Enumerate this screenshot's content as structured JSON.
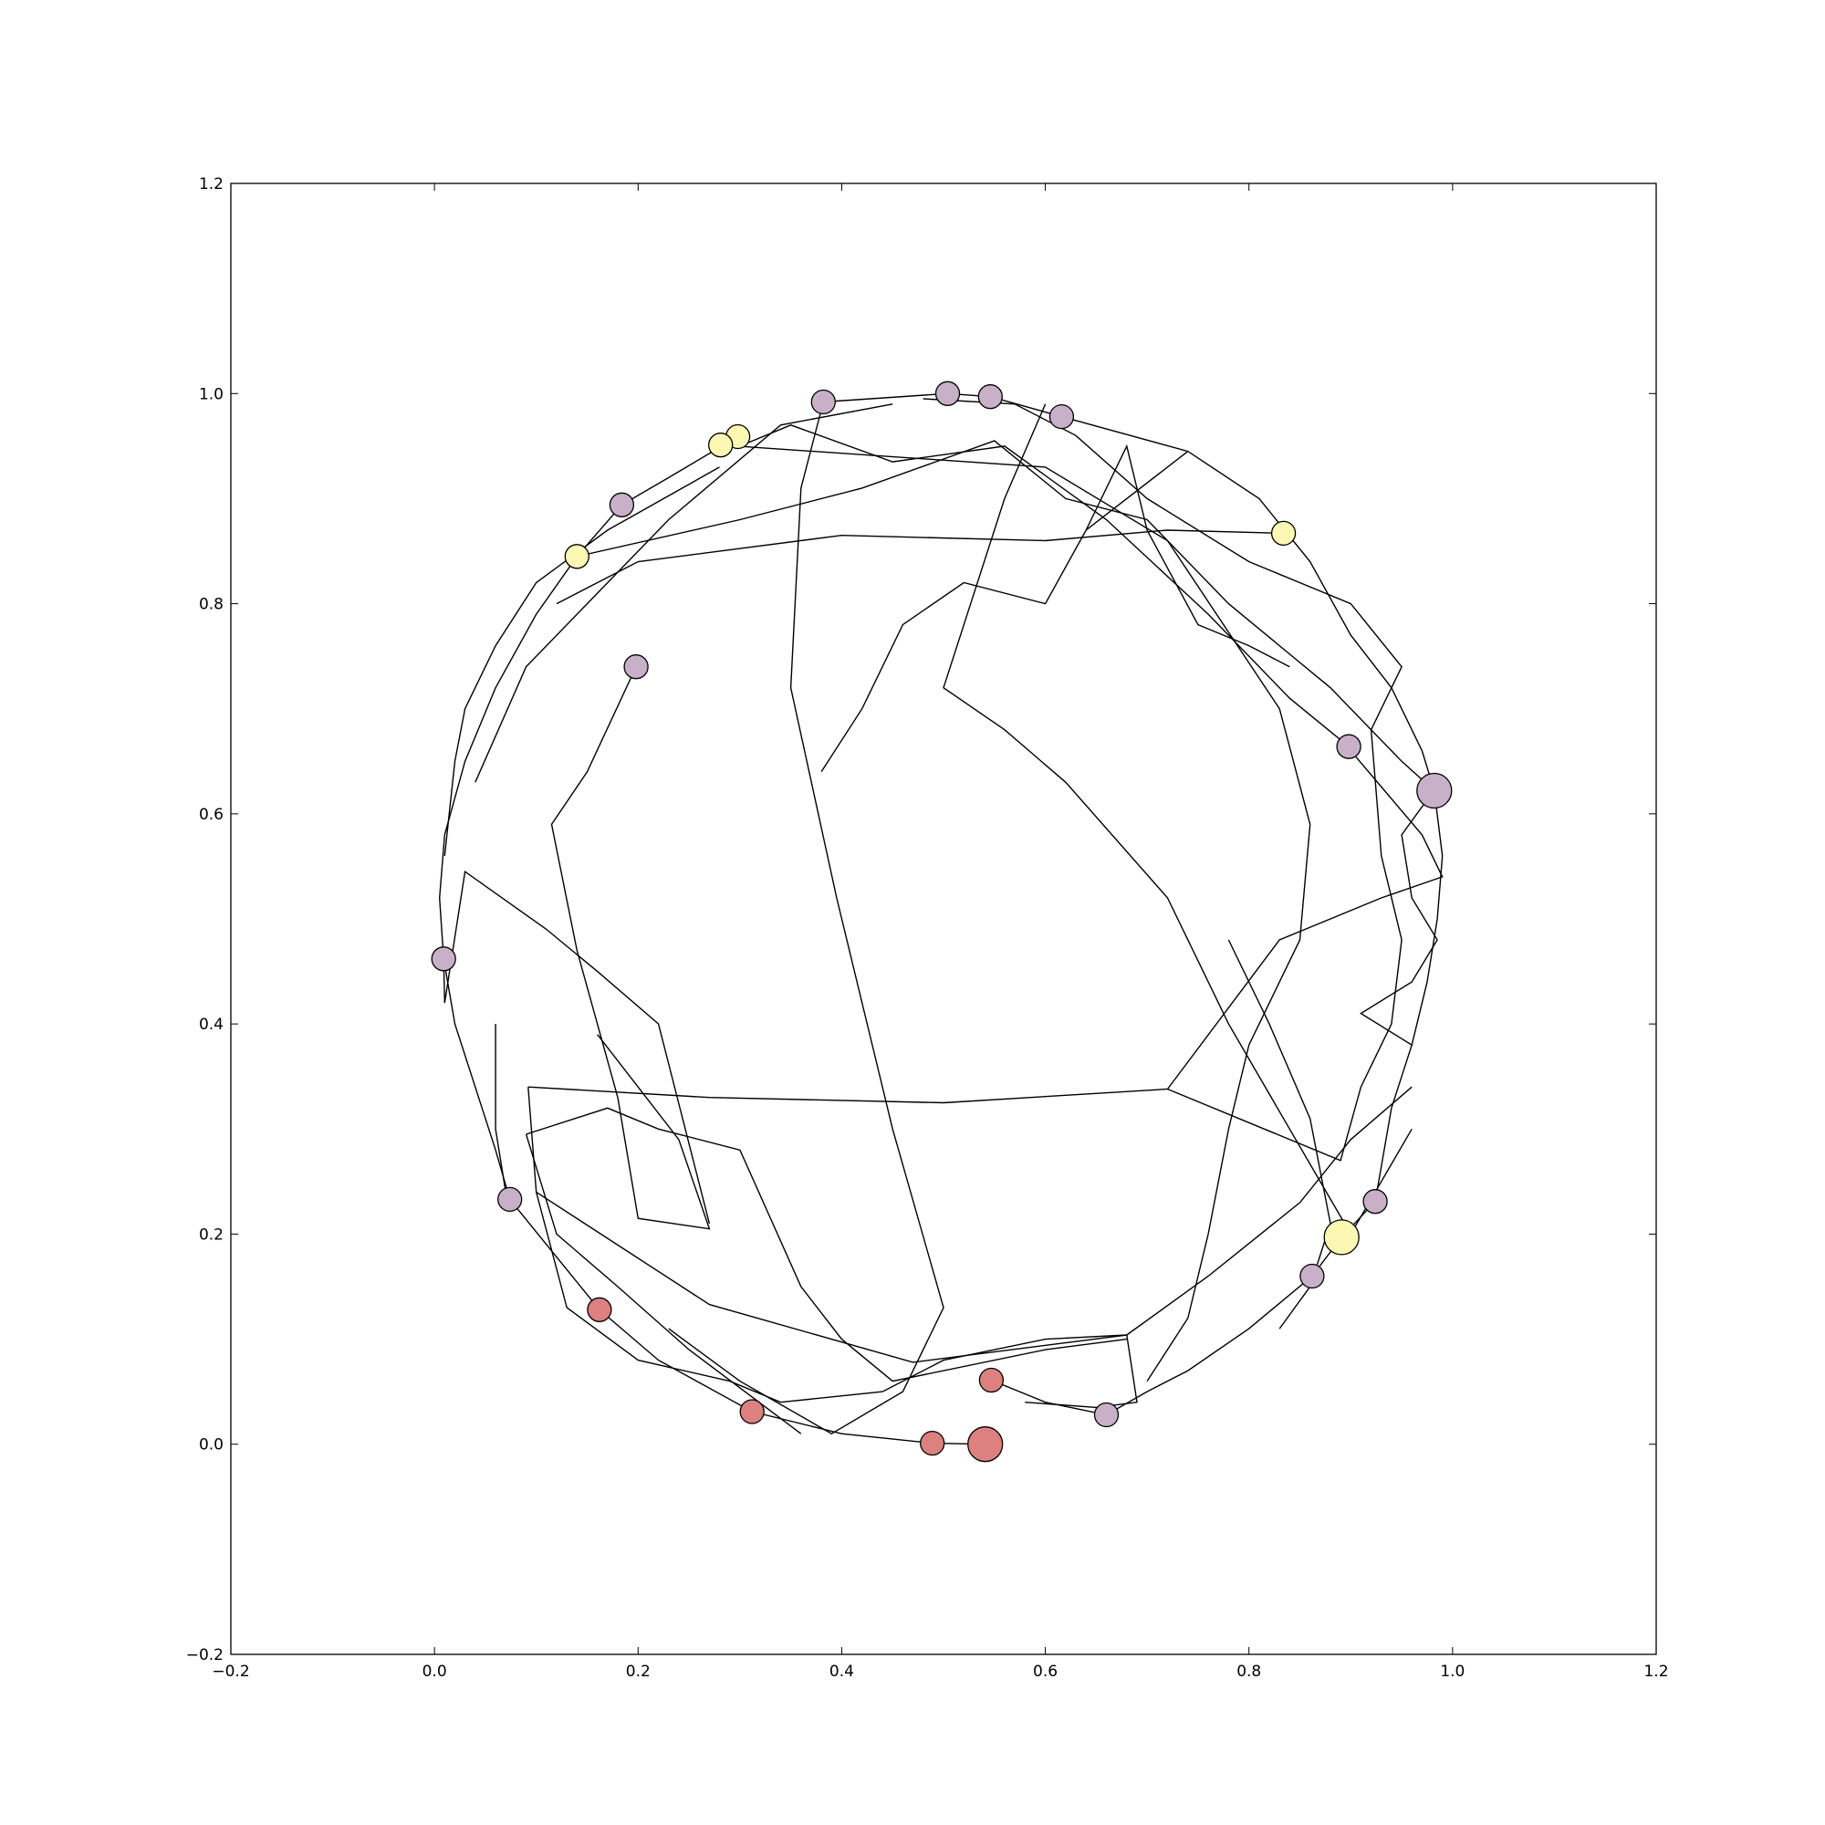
{
  "chart_data": {
    "type": "scatter",
    "title": "",
    "xlabel": "",
    "ylabel": "",
    "xlim": [
      -0.2,
      1.2
    ],
    "ylim": [
      -0.2,
      1.2
    ],
    "xticks": [
      -0.2,
      0.0,
      0.2,
      0.4,
      0.6,
      0.8,
      1.0,
      1.2
    ],
    "yticks": [
      -0.2,
      0.0,
      0.2,
      0.4,
      0.6,
      0.8,
      1.0,
      1.2
    ],
    "xtick_labels": [
      "−0.2",
      "0.0",
      "0.2",
      "0.4",
      "0.6",
      "0.8",
      "1.0",
      "1.2"
    ],
    "ytick_labels": [
      "−0.2",
      "0.0",
      "0.2",
      "0.4",
      "0.6",
      "0.8",
      "1.0",
      "1.2"
    ],
    "grid": false,
    "legend": "none",
    "colors": {
      "purple": "#c8b0c8",
      "yellow": "#fcf8b4",
      "red": "#dc8080",
      "edge": "#000000",
      "axes": "#000000"
    },
    "nodes": [
      {
        "x": 0.382,
        "y": 0.992,
        "color": "purple",
        "size": "normal"
      },
      {
        "x": 0.504,
        "y": 1.0,
        "color": "purple",
        "size": "normal"
      },
      {
        "x": 0.546,
        "y": 0.997,
        "color": "purple",
        "size": "normal"
      },
      {
        "x": 0.616,
        "y": 0.978,
        "color": "purple",
        "size": "normal"
      },
      {
        "x": 0.298,
        "y": 0.959,
        "color": "yellow",
        "size": "normal"
      },
      {
        "x": 0.281,
        "y": 0.951,
        "color": "yellow",
        "size": "normal"
      },
      {
        "x": 0.184,
        "y": 0.894,
        "color": "purple",
        "size": "normal"
      },
      {
        "x": 0.14,
        "y": 0.845,
        "color": "yellow",
        "size": "normal"
      },
      {
        "x": 0.834,
        "y": 0.867,
        "color": "yellow",
        "size": "normal"
      },
      {
        "x": 0.198,
        "y": 0.74,
        "color": "purple",
        "size": "normal"
      },
      {
        "x": 0.898,
        "y": 0.664,
        "color": "purple",
        "size": "normal"
      },
      {
        "x": 0.982,
        "y": 0.622,
        "color": "purple",
        "size": "large"
      },
      {
        "x": 0.009,
        "y": 0.462,
        "color": "purple",
        "size": "normal"
      },
      {
        "x": 0.074,
        "y": 0.233,
        "color": "purple",
        "size": "normal"
      },
      {
        "x": 0.924,
        "y": 0.231,
        "color": "purple",
        "size": "normal"
      },
      {
        "x": 0.891,
        "y": 0.197,
        "color": "yellow",
        "size": "large"
      },
      {
        "x": 0.862,
        "y": 0.16,
        "color": "purple",
        "size": "normal"
      },
      {
        "x": 0.162,
        "y": 0.128,
        "color": "red",
        "size": "normal"
      },
      {
        "x": 0.547,
        "y": 0.061,
        "color": "red",
        "size": "normal"
      },
      {
        "x": 0.312,
        "y": 0.031,
        "color": "red",
        "size": "normal"
      },
      {
        "x": 0.66,
        "y": 0.028,
        "color": "purple",
        "size": "normal"
      },
      {
        "x": 0.489,
        "y": 0.001,
        "color": "red",
        "size": "normal"
      },
      {
        "x": 0.541,
        "y": 0.0,
        "color": "red",
        "size": "large"
      }
    ],
    "paths": [
      [
        [
          0.382,
          0.992
        ],
        [
          0.504,
          1.0
        ],
        [
          0.546,
          0.997
        ],
        [
          0.616,
          0.978
        ],
        [
          0.74,
          0.945
        ],
        [
          0.81,
          0.9
        ],
        [
          0.86,
          0.84
        ],
        [
          0.9,
          0.77
        ],
        [
          0.94,
          0.72
        ],
        [
          0.97,
          0.66
        ],
        [
          0.982,
          0.622
        ],
        [
          0.99,
          0.56
        ],
        [
          0.985,
          0.5
        ],
        [
          0.975,
          0.44
        ],
        [
          0.96,
          0.38
        ],
        [
          0.94,
          0.32
        ],
        [
          0.924,
          0.231
        ],
        [
          0.891,
          0.197
        ],
        [
          0.862,
          0.16
        ],
        [
          0.8,
          0.11
        ],
        [
          0.74,
          0.07
        ],
        [
          0.7,
          0.05
        ],
        [
          0.66,
          0.028
        ],
        [
          0.6,
          0.04
        ],
        [
          0.547,
          0.061
        ]
      ],
      [
        [
          0.298,
          0.959
        ],
        [
          0.23,
          0.92
        ],
        [
          0.184,
          0.894
        ],
        [
          0.14,
          0.845
        ],
        [
          0.1,
          0.79
        ],
        [
          0.06,
          0.72
        ],
        [
          0.03,
          0.65
        ],
        [
          0.01,
          0.58
        ],
        [
          0.005,
          0.52
        ],
        [
          0.009,
          0.462
        ],
        [
          0.02,
          0.4
        ],
        [
          0.04,
          0.34
        ],
        [
          0.06,
          0.28
        ],
        [
          0.074,
          0.233
        ],
        [
          0.11,
          0.19
        ],
        [
          0.162,
          0.128
        ],
        [
          0.22,
          0.08
        ],
        [
          0.312,
          0.031
        ],
        [
          0.4,
          0.01
        ],
        [
          0.489,
          0.001
        ],
        [
          0.541,
          0.0
        ]
      ],
      [
        [
          0.281,
          0.951
        ],
        [
          0.6,
          0.93
        ],
        [
          0.72,
          0.86
        ],
        [
          0.83,
          0.7
        ],
        [
          0.86,
          0.59
        ],
        [
          0.85,
          0.48
        ],
        [
          0.8,
          0.38
        ],
        [
          0.78,
          0.3
        ],
        [
          0.76,
          0.2
        ],
        [
          0.74,
          0.12
        ],
        [
          0.7,
          0.06
        ]
      ],
      [
        [
          0.14,
          0.845
        ],
        [
          0.3,
          0.88
        ],
        [
          0.42,
          0.91
        ],
        [
          0.55,
          0.955
        ],
        [
          0.62,
          0.9
        ],
        [
          0.7,
          0.88
        ],
        [
          0.78,
          0.8
        ],
        [
          0.88,
          0.72
        ],
        [
          0.95,
          0.65
        ],
        [
          0.982,
          0.622
        ]
      ],
      [
        [
          0.834,
          0.867
        ],
        [
          0.72,
          0.87
        ],
        [
          0.6,
          0.86
        ],
        [
          0.4,
          0.865
        ],
        [
          0.2,
          0.84
        ],
        [
          0.12,
          0.8
        ]
      ],
      [
        [
          0.198,
          0.74
        ],
        [
          0.15,
          0.64
        ],
        [
          0.115,
          0.59
        ],
        [
          0.14,
          0.47
        ],
        [
          0.18,
          0.33
        ],
        [
          0.2,
          0.215
        ],
        [
          0.27,
          0.205
        ],
        [
          0.24,
          0.29
        ],
        [
          0.16,
          0.39
        ]
      ],
      [
        [
          0.898,
          0.664
        ],
        [
          0.84,
          0.71
        ],
        [
          0.76,
          0.79
        ],
        [
          0.66,
          0.88
        ],
        [
          0.56,
          0.95
        ],
        [
          0.45,
          0.935
        ],
        [
          0.35,
          0.97
        ],
        [
          0.3,
          0.95
        ]
      ],
      [
        [
          0.382,
          0.992
        ],
        [
          0.36,
          0.91
        ],
        [
          0.35,
          0.72
        ],
        [
          0.395,
          0.52
        ],
        [
          0.45,
          0.3
        ],
        [
          0.5,
          0.13
        ],
        [
          0.46,
          0.05
        ],
        [
          0.39,
          0.01
        ],
        [
          0.3,
          0.06
        ],
        [
          0.23,
          0.11
        ]
      ],
      [
        [
          0.009,
          0.462
        ],
        [
          0.01,
          0.42
        ],
        [
          0.03,
          0.545
        ],
        [
          0.11,
          0.49
        ],
        [
          0.16,
          0.45
        ],
        [
          0.22,
          0.4
        ],
        [
          0.27,
          0.21
        ]
      ],
      [
        [
          0.092,
          0.34
        ],
        [
          0.27,
          0.33
        ],
        [
          0.5,
          0.325
        ],
        [
          0.72,
          0.338
        ],
        [
          0.83,
          0.48
        ],
        [
          0.93,
          0.52
        ],
        [
          0.99,
          0.54
        ],
        [
          0.97,
          0.58
        ],
        [
          0.9,
          0.66
        ]
      ],
      [
        [
          0.72,
          0.338
        ],
        [
          0.89,
          0.27
        ],
        [
          0.91,
          0.34
        ],
        [
          0.94,
          0.4
        ],
        [
          0.95,
          0.48
        ],
        [
          0.93,
          0.56
        ],
        [
          0.92,
          0.68
        ],
        [
          0.95,
          0.74
        ],
        [
          0.9,
          0.8
        ],
        [
          0.8,
          0.84
        ],
        [
          0.7,
          0.9
        ],
        [
          0.63,
          0.96
        ],
        [
          0.57,
          0.99
        ],
        [
          0.48,
          0.995
        ]
      ],
      [
        [
          0.09,
          0.295
        ],
        [
          0.17,
          0.32
        ],
        [
          0.22,
          0.3
        ],
        [
          0.3,
          0.28
        ],
        [
          0.36,
          0.15
        ],
        [
          0.4,
          0.1
        ],
        [
          0.45,
          0.06
        ],
        [
          0.6,
          0.09
        ],
        [
          0.68,
          0.1
        ]
      ],
      [
        [
          0.092,
          0.34
        ],
        [
          0.1,
          0.24
        ],
        [
          0.13,
          0.13
        ],
        [
          0.2,
          0.08
        ],
        [
          0.29,
          0.06
        ],
        [
          0.34,
          0.04
        ],
        [
          0.44,
          0.05
        ],
        [
          0.5,
          0.08
        ],
        [
          0.6,
          0.1
        ],
        [
          0.68,
          0.104
        ],
        [
          0.76,
          0.16
        ],
        [
          0.85,
          0.23
        ],
        [
          0.9,
          0.29
        ],
        [
          0.96,
          0.34
        ]
      ],
      [
        [
          0.1,
          0.24
        ],
        [
          0.27,
          0.133
        ],
        [
          0.47,
          0.078
        ],
        [
          0.68,
          0.104
        ],
        [
          0.69,
          0.04
        ],
        [
          0.65,
          0.035
        ],
        [
          0.58,
          0.04
        ]
      ],
      [
        [
          0.06,
          0.4
        ],
        [
          0.06,
          0.3
        ],
        [
          0.07,
          0.24
        ]
      ],
      [
        [
          0.6,
          0.99
        ],
        [
          0.56,
          0.9
        ],
        [
          0.5,
          0.72
        ],
        [
          0.56,
          0.68
        ],
        [
          0.62,
          0.63
        ],
        [
          0.72,
          0.52
        ],
        [
          0.78,
          0.4
        ],
        [
          0.84,
          0.3
        ],
        [
          0.9,
          0.2
        ],
        [
          0.96,
          0.3
        ]
      ],
      [
        [
          0.74,
          0.945
        ],
        [
          0.64,
          0.87
        ],
        [
          0.6,
          0.8
        ],
        [
          0.52,
          0.82
        ],
        [
          0.46,
          0.78
        ],
        [
          0.42,
          0.7
        ],
        [
          0.38,
          0.64
        ]
      ],
      [
        [
          0.78,
          0.48
        ],
        [
          0.82,
          0.4
        ],
        [
          0.86,
          0.31
        ],
        [
          0.88,
          0.21
        ],
        [
          0.86,
          0.15
        ],
        [
          0.83,
          0.11
        ]
      ],
      [
        [
          0.64,
          0.87
        ],
        [
          0.68,
          0.95
        ],
        [
          0.7,
          0.87
        ],
        [
          0.75,
          0.78
        ],
        [
          0.8,
          0.76
        ],
        [
          0.84,
          0.74
        ]
      ],
      [
        [
          0.04,
          0.63
        ],
        [
          0.09,
          0.74
        ],
        [
          0.15,
          0.8
        ],
        [
          0.23,
          0.88
        ],
        [
          0.34,
          0.97
        ],
        [
          0.45,
          0.99
        ]
      ],
      [
        [
          0.01,
          0.56
        ],
        [
          0.02,
          0.65
        ],
        [
          0.03,
          0.7
        ],
        [
          0.06,
          0.76
        ],
        [
          0.1,
          0.82
        ],
        [
          0.17,
          0.87
        ],
        [
          0.28,
          0.93
        ]
      ],
      [
        [
          0.96,
          0.38
        ],
        [
          0.91,
          0.41
        ],
        [
          0.96,
          0.44
        ],
        [
          0.985,
          0.48
        ],
        [
          0.96,
          0.52
        ],
        [
          0.95,
          0.58
        ],
        [
          0.98,
          0.62
        ]
      ],
      [
        [
          0.09,
          0.295
        ],
        [
          0.12,
          0.2
        ],
        [
          0.18,
          0.15
        ],
        [
          0.25,
          0.09
        ],
        [
          0.36,
          0.01
        ]
      ]
    ]
  }
}
